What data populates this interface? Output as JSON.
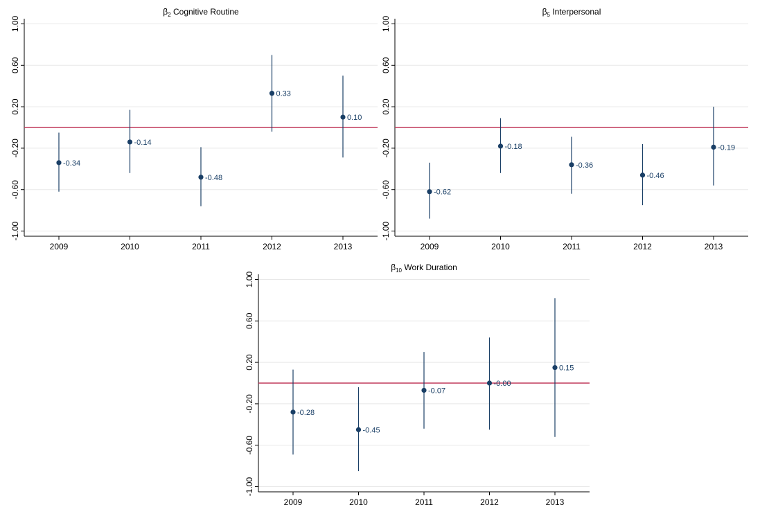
{
  "colors": {
    "marker": "#1a3f66",
    "ci_line": "#1a3f66",
    "zero_line": "#c0395a",
    "grid": "#e8e8e8",
    "axis": "#000000"
  },
  "chart_data": [
    {
      "type": "scatter",
      "title_symbol": "β",
      "title_subscript": "2",
      "title_text": " Cognitive Routine",
      "x": [
        "2009",
        "2010",
        "2011",
        "2012",
        "2013"
      ],
      "values": [
        -0.34,
        -0.14,
        -0.48,
        0.33,
        0.1
      ],
      "ci_low": [
        -0.62,
        -0.44,
        -0.76,
        -0.04,
        -0.29
      ],
      "ci_high": [
        -0.05,
        0.17,
        -0.19,
        0.7,
        0.5
      ],
      "value_labels": [
        "-0.34",
        "-0.14",
        "-0.48",
        "0.33",
        "0.10"
      ],
      "yticks": [
        1.0,
        0.6,
        0.2,
        -0.2,
        -0.6,
        -1.0
      ],
      "ytick_labels": [
        "1.00",
        "0.60",
        "0.20",
        "-0.20",
        "-0.60",
        "-1.00"
      ],
      "ylim": [
        -1.05,
        1.05
      ],
      "reference_line": 0,
      "grid": true
    },
    {
      "type": "scatter",
      "title_symbol": "β",
      "title_subscript": "5",
      "title_text": " Interpersonal",
      "x": [
        "2009",
        "2010",
        "2011",
        "2012",
        "2013"
      ],
      "values": [
        -0.62,
        -0.18,
        -0.36,
        -0.46,
        -0.19
      ],
      "ci_low": [
        -0.88,
        -0.44,
        -0.64,
        -0.75,
        -0.56
      ],
      "ci_high": [
        -0.34,
        0.09,
        -0.09,
        -0.16,
        0.2
      ],
      "value_labels": [
        "-0.62",
        "-0.18",
        "-0.36",
        "-0.46",
        "-0.19"
      ],
      "yticks": [
        1.0,
        0.6,
        0.2,
        -0.2,
        -0.6,
        -1.0
      ],
      "ytick_labels": [
        "1.00",
        "0.60",
        "0.20",
        "-0.20",
        "-0.60",
        "-1.00"
      ],
      "ylim": [
        -1.05,
        1.05
      ],
      "reference_line": 0,
      "grid": true
    },
    {
      "type": "scatter",
      "title_symbol": "β",
      "title_subscript": "10",
      "title_text": " Work Duration",
      "x": [
        "2009",
        "2010",
        "2011",
        "2012",
        "2013"
      ],
      "values": [
        -0.28,
        -0.45,
        -0.07,
        -0.0,
        0.15
      ],
      "ci_low": [
        -0.69,
        -0.85,
        -0.44,
        -0.45,
        -0.52
      ],
      "ci_high": [
        0.13,
        -0.04,
        0.3,
        0.44,
        0.82
      ],
      "value_labels": [
        "-0.28",
        "-0.45",
        "-0.07",
        "-0.00",
        "0.15"
      ],
      "yticks": [
        1.0,
        0.6,
        0.2,
        -0.2,
        -0.6,
        -1.0
      ],
      "ytick_labels": [
        "1.00",
        "0.60",
        "0.20",
        "-0.20",
        "-0.60",
        "-1.00"
      ],
      "ylim": [
        -1.05,
        1.05
      ],
      "reference_line": 0,
      "grid": true
    }
  ]
}
